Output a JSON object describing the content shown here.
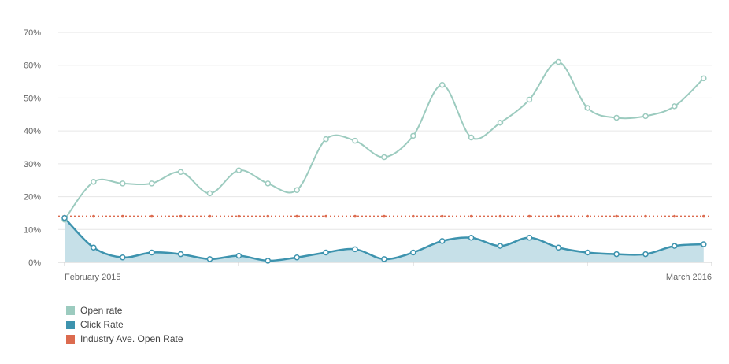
{
  "chart_data": {
    "type": "line",
    "ylim": [
      0,
      70
    ],
    "y_ticks": [
      "70%",
      "60%",
      "50%",
      "40%",
      "30%",
      "20%",
      "10%",
      "0%"
    ],
    "y_tick_values": [
      70,
      60,
      50,
      40,
      30,
      20,
      10,
      0
    ],
    "x_labels": [
      "February 2015",
      "March 2016"
    ],
    "grid": true,
    "legend_position": "bottom-left",
    "series": [
      {
        "name": "Open rate",
        "type": "line",
        "color": "#9ccbbf",
        "values": [
          13,
          24.5,
          24,
          24,
          27.5,
          21,
          28,
          24,
          22,
          37.5,
          37,
          32,
          38.5,
          54,
          38,
          42.5,
          49.5,
          61,
          47,
          44,
          44.5,
          47.5,
          56
        ]
      },
      {
        "name": "Click Rate",
        "type": "area",
        "color": "#3d93ae",
        "fill": "#c6e0e8",
        "values": [
          13.5,
          4.5,
          1.5,
          3,
          2.5,
          1,
          2,
          0.5,
          1.5,
          3,
          4,
          1,
          3,
          6.5,
          7.5,
          5,
          7.5,
          4.5,
          3,
          2.5,
          2.5,
          5,
          5.5
        ]
      },
      {
        "name": "Industry Ave. Open Rate",
        "type": "dotted",
        "color": "#dc6b4f",
        "values": [
          14,
          14,
          14,
          14,
          14,
          14,
          14,
          14,
          14,
          14,
          14,
          14,
          14,
          14,
          14,
          14,
          14,
          14,
          14,
          14,
          14,
          14,
          14
        ]
      }
    ]
  },
  "legend": [
    {
      "label": "Open rate",
      "color": "#9ccbbf"
    },
    {
      "label": "Click Rate",
      "color": "#3d93ae"
    },
    {
      "label": "Industry Ave. Open Rate",
      "color": "#dc6b4f"
    }
  ]
}
